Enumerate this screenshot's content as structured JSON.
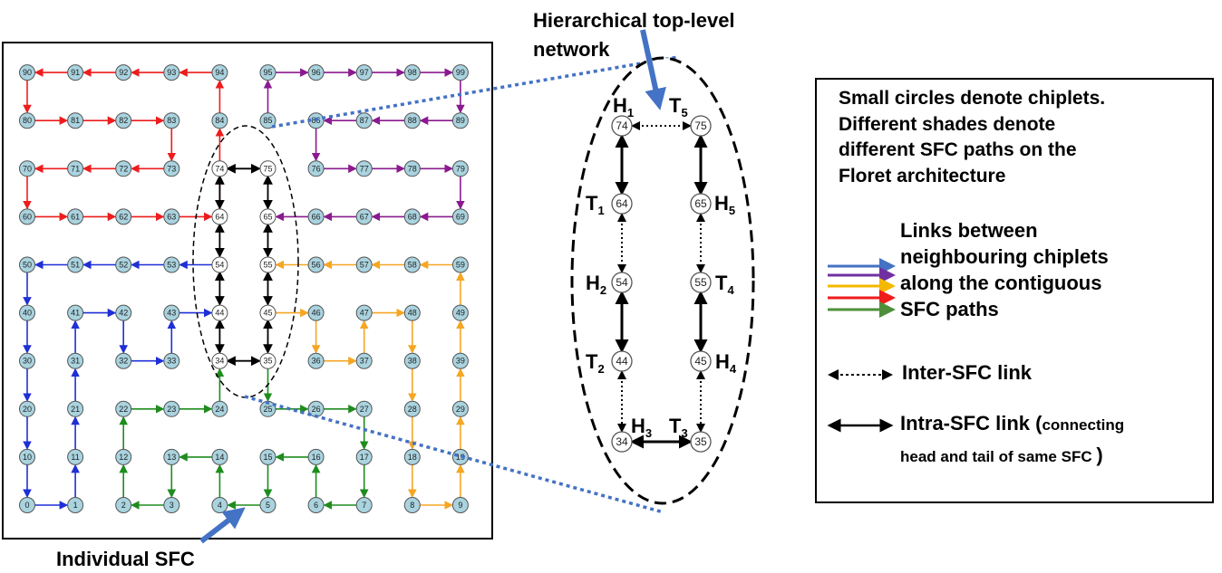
{
  "title_top": [
    "Hierarchical top-level",
    "network"
  ],
  "caption_bottom": "Individual SFC",
  "zoom": {
    "labels": [
      {
        "main": "H",
        "sub": "1"
      },
      {
        "main": "T",
        "sub": "5"
      },
      {
        "main": "T",
        "sub": "1"
      },
      {
        "main": "H",
        "sub": "5"
      },
      {
        "main": "H",
        "sub": "2"
      },
      {
        "main": "T",
        "sub": "4"
      },
      {
        "main": "T",
        "sub": "2"
      },
      {
        "main": "H",
        "sub": "4"
      },
      {
        "main": "H",
        "sub": "3"
      },
      {
        "main": "T",
        "sub": "3"
      }
    ],
    "nodes": [
      "74",
      "75",
      "64",
      "65",
      "54",
      "55",
      "44",
      "45",
      "34",
      "35"
    ]
  },
  "legend": {
    "intro": [
      "Small circles denote chiplets.",
      "Different shades denote",
      "different SFC paths on the",
      "Floret architecture"
    ],
    "links_text": [
      "Links between",
      "neighbouring chiplets",
      "along the contiguous",
      "SFC paths"
    ],
    "inter": "Inter-SFC link",
    "intra_main": "Intra-SFC link (",
    "intra_small": "connecting",
    "intra_line2": "head and tail of same SFC",
    "intra_close": ")"
  },
  "colors": {
    "red": "#ee1c1c",
    "purple": "#8a1a8f",
    "orange": "#f5a623",
    "blue": "#1f2fd6",
    "green": "#1e8c1e",
    "black": "#000000",
    "chiplet_fill": "#a9d3df",
    "callout": "#4472c4",
    "legend_arrows": [
      "#4472c4",
      "#7030a0",
      "#f5b800",
      "#ee1c1c",
      "#4f8f3a"
    ]
  },
  "sfc_paths": {
    "red": [
      94,
      93,
      92,
      91,
      90,
      80,
      81,
      82,
      83,
      73,
      72,
      71,
      70,
      60,
      61,
      62,
      63,
      64,
      74,
      84,
      94
    ],
    "purple": [
      85,
      95,
      96,
      97,
      98,
      99,
      89,
      88,
      87,
      86,
      76,
      77,
      78,
      79,
      69,
      68,
      67,
      66,
      65
    ],
    "orange": [
      45,
      46,
      36,
      37,
      47,
      48,
      38,
      28,
      18,
      8,
      9,
      19,
      29,
      39,
      49,
      59,
      58,
      57,
      56,
      55
    ],
    "blue": [
      54,
      53,
      52,
      51,
      50,
      40,
      30,
      20,
      10,
      0,
      1,
      11,
      21,
      31,
      41,
      42,
      32,
      33,
      43,
      44
    ],
    "green": [
      35,
      25,
      26,
      27,
      17,
      7,
      6,
      16,
      15,
      5,
      4,
      14,
      13,
      3,
      2,
      12,
      22,
      23,
      24,
      34
    ]
  },
  "intra_links": [
    [
      74,
      75
    ],
    [
      34,
      35
    ]
  ],
  "spine_links": [
    [
      74,
      64
    ],
    [
      64,
      54
    ],
    [
      54,
      44
    ],
    [
      44,
      34
    ],
    [
      75,
      65
    ],
    [
      65,
      55
    ],
    [
      55,
      45
    ],
    [
      45,
      35
    ]
  ]
}
